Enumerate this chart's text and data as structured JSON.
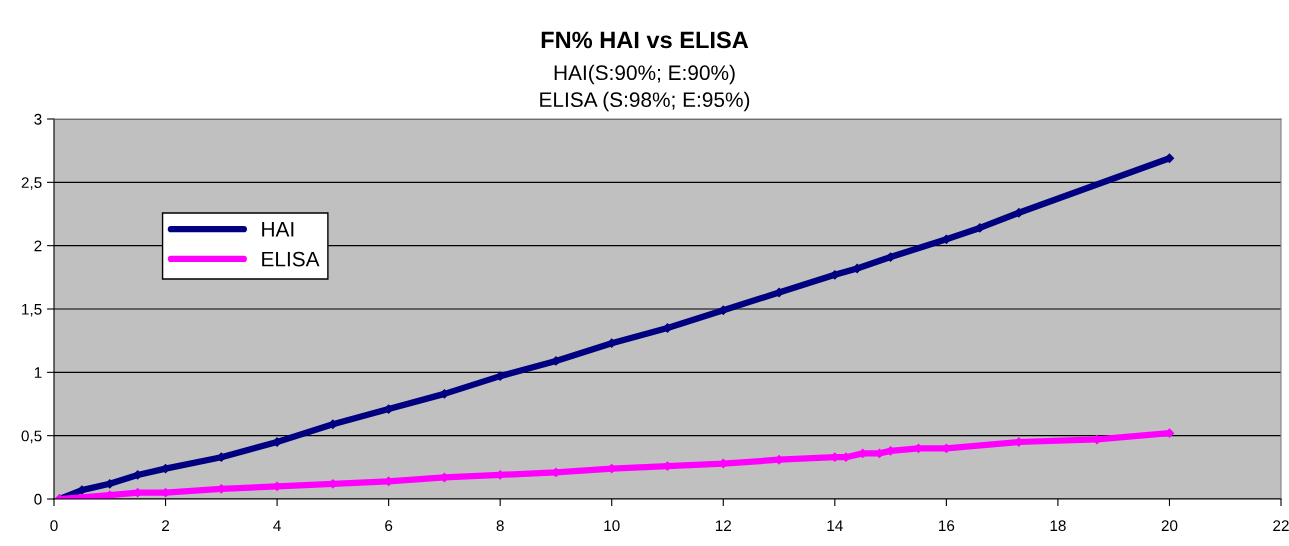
{
  "chart_data": {
    "type": "line",
    "title": "FN% HAI vs ELISA",
    "subtitle": "HAI(S:90%; E:90%)\nELISA (S:98%; E:95%)",
    "xlim": [
      0,
      22
    ],
    "xticks": [
      0,
      2,
      4,
      6,
      8,
      10,
      12,
      14,
      16,
      18,
      20,
      22
    ],
    "ylim": [
      0,
      3
    ],
    "yticks": [
      0,
      {
        "value": 0.5,
        "label": "0,5"
      },
      1,
      {
        "value": 1.5,
        "label": "1,5"
      },
      2,
      {
        "value": 2.5,
        "label": "2,5"
      },
      3
    ],
    "grid": "y",
    "legend": "top left",
    "marker": "diamond",
    "line_style": "solid",
    "series": [
      {
        "name": "HAI",
        "color": "#000080",
        "x": [
          0.1,
          0.5,
          1,
          1.5,
          2,
          3,
          4,
          5,
          6,
          7,
          8,
          9,
          10,
          11,
          12,
          13,
          14,
          14.4,
          15,
          16,
          16.6,
          17.3,
          20
        ],
        "values": [
          0,
          0.07,
          0.12,
          0.19,
          0.24,
          0.33,
          0.45,
          0.59,
          0.71,
          0.83,
          0.97,
          1.09,
          1.23,
          1.35,
          1.49,
          1.63,
          1.77,
          1.82,
          1.91,
          2.05,
          2.14,
          2.26,
          2.69
        ]
      },
      {
        "name": "ELISA",
        "color": "#ff00ff",
        "x": [
          0.1,
          1,
          1.5,
          2,
          3,
          4,
          5,
          6,
          7,
          8,
          9,
          10,
          11,
          12,
          13,
          14,
          14.2,
          14.5,
          14.8,
          15,
          15.5,
          16,
          17.3,
          18.7,
          20
        ],
        "values": [
          0,
          0.03,
          0.05,
          0.05,
          0.08,
          0.1,
          0.12,
          0.14,
          0.17,
          0.19,
          0.21,
          0.24,
          0.26,
          0.28,
          0.31,
          0.33,
          0.33,
          0.36,
          0.36,
          0.38,
          0.4,
          0.4,
          0.45,
          0.47,
          0.52
        ]
      }
    ]
  }
}
